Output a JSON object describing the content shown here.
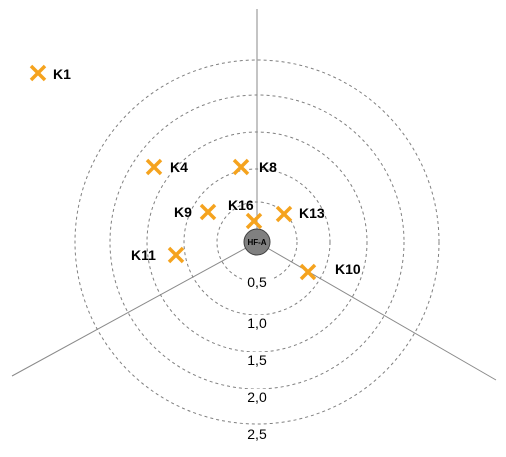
{
  "hub": {
    "label": "HF-A",
    "fill_color": "#808080"
  },
  "rings": [
    "0,5",
    "1,0",
    "1,5",
    "2,0",
    "2,5"
  ],
  "points": [
    {
      "label": "K1"
    },
    {
      "label": "K4"
    },
    {
      "label": "K8"
    },
    {
      "label": "K9"
    },
    {
      "label": "K16"
    },
    {
      "label": "K13"
    },
    {
      "label": "K11"
    },
    {
      "label": "K10"
    }
  ],
  "colors": {
    "marker": "#F5A31E",
    "axis": "#808080",
    "ring": "#808080"
  }
}
